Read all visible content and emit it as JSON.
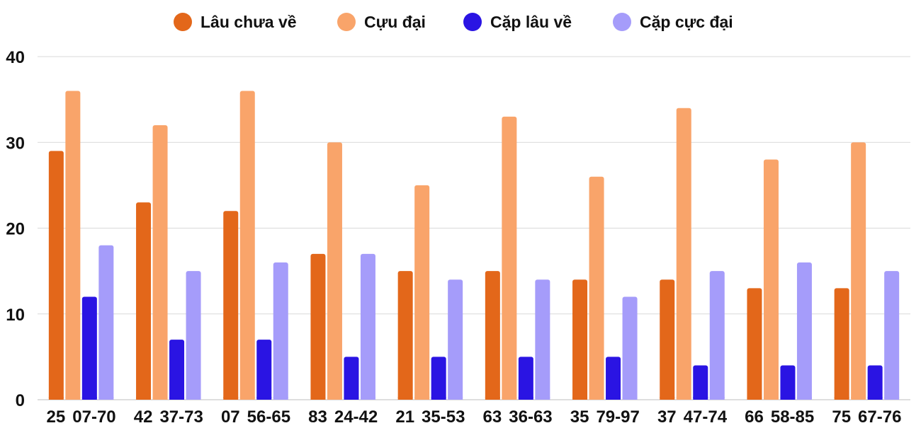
{
  "chart_data": {
    "type": "bar",
    "title": "",
    "xlabel": "",
    "ylabel": "",
    "ylim": [
      0,
      40
    ],
    "yticks": [
      0,
      10,
      20,
      30,
      40
    ],
    "grid": true,
    "legend_position": "top-center",
    "categories": [
      "25",
      "42",
      "07",
      "83",
      "21",
      "63",
      "35",
      "37",
      "66",
      "75"
    ],
    "pair_labels": [
      "07-70",
      "37-73",
      "56-65",
      "24-42",
      "35-53",
      "36-63",
      "79-97",
      "47-74",
      "58-85",
      "67-76"
    ],
    "series": [
      {
        "name": "Lâu chưa về",
        "color": "#e3671a",
        "values": [
          29,
          23,
          22,
          17,
          15,
          15,
          14,
          14,
          13,
          13
        ]
      },
      {
        "name": "Cựu đại",
        "color": "#f9a46a",
        "values": [
          36,
          32,
          36,
          30,
          25,
          33,
          26,
          34,
          28,
          30
        ]
      },
      {
        "name": "Cặp lâu về",
        "color": "#2a14e3",
        "values": [
          12,
          7,
          7,
          5,
          5,
          5,
          5,
          4,
          4,
          4
        ]
      },
      {
        "name": "Cặp cực đại",
        "color": "#a59cfa",
        "values": [
          18,
          15,
          16,
          17,
          14,
          14,
          12,
          15,
          16,
          15
        ]
      }
    ]
  }
}
